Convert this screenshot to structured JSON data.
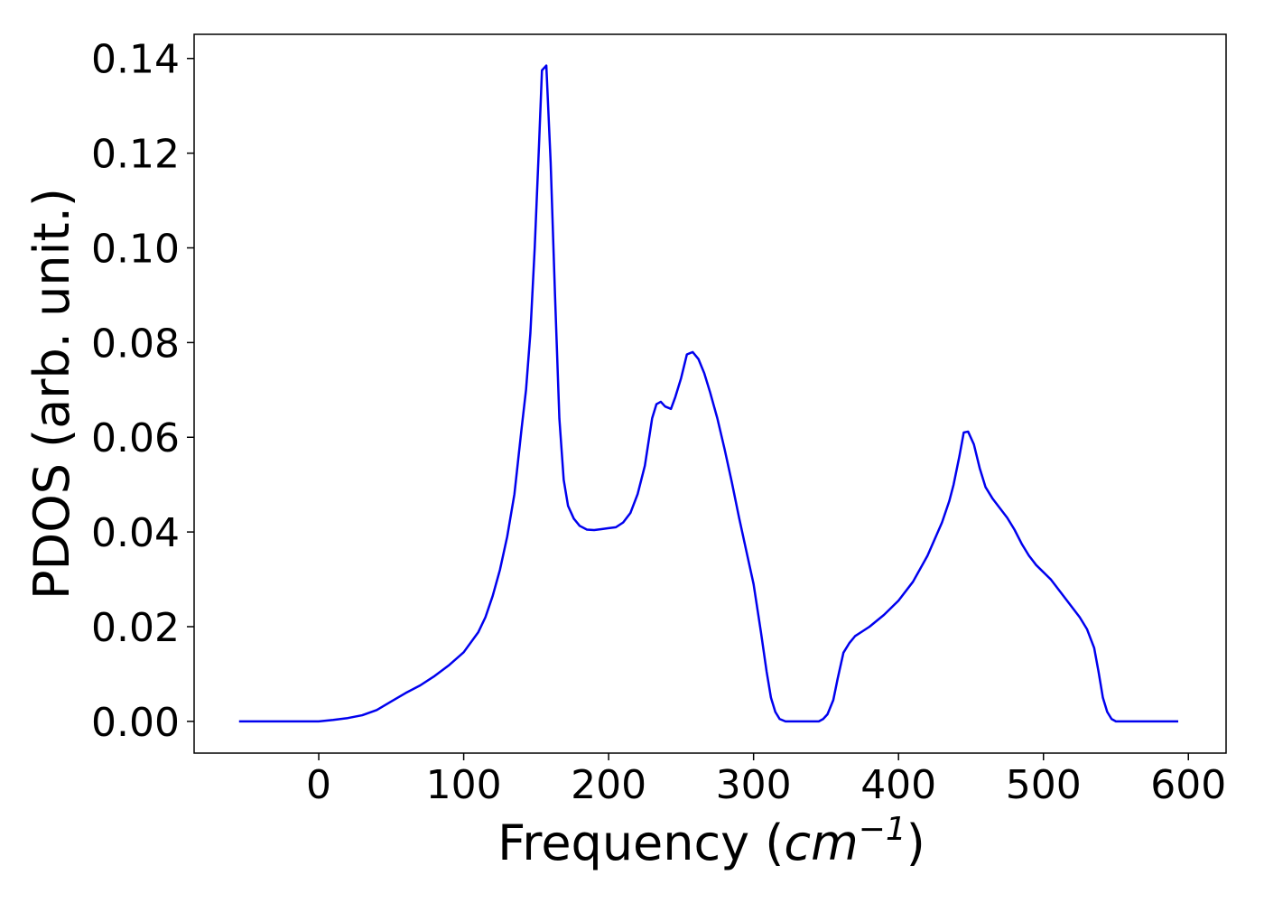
{
  "chart_data": {
    "type": "line",
    "xlabel": [
      "Frequency (",
      "cm",
      "−1",
      ")"
    ],
    "ylabel": "PDOS (arb. unit.)",
    "x": [
      -55,
      0,
      10,
      20,
      30,
      40,
      50,
      60,
      70,
      80,
      90,
      100,
      110,
      115,
      120,
      125,
      130,
      135,
      140,
      143,
      146,
      149,
      152,
      154,
      157,
      160,
      163,
      166,
      169,
      172,
      176,
      180,
      185,
      190,
      195,
      200,
      205,
      210,
      215,
      220,
      225,
      230,
      233,
      236,
      239,
      243,
      246,
      250,
      254,
      258,
      262,
      266,
      270,
      275,
      280,
      285,
      290,
      295,
      300,
      305,
      309,
      312,
      315,
      318,
      322,
      345,
      348,
      351,
      355,
      358,
      362,
      366,
      370,
      375,
      380,
      390,
      400,
      410,
      420,
      430,
      435,
      438,
      442,
      445,
      448,
      452,
      456,
      460,
      465,
      470,
      475,
      480,
      485,
      490,
      495,
      500,
      505,
      510,
      515,
      520,
      525,
      530,
      535,
      538,
      541,
      544,
      547,
      550,
      593
    ],
    "series": [
      {
        "color": "#0000ee",
        "values": [
          0,
          0,
          0.0003,
          0.0007,
          0.0013,
          0.0024,
          0.0042,
          0.006,
          0.0076,
          0.0096,
          0.0119,
          0.0146,
          0.0188,
          0.022,
          0.0265,
          0.032,
          0.039,
          0.048,
          0.062,
          0.07,
          0.082,
          0.1,
          0.122,
          0.1375,
          0.1385,
          0.118,
          0.09,
          0.064,
          0.051,
          0.0455,
          0.0428,
          0.0413,
          0.0405,
          0.0404,
          0.0406,
          0.0408,
          0.041,
          0.042,
          0.044,
          0.048,
          0.054,
          0.064,
          0.067,
          0.0675,
          0.0665,
          0.066,
          0.0685,
          0.0725,
          0.0775,
          0.078,
          0.0765,
          0.0735,
          0.0695,
          0.064,
          0.0575,
          0.0505,
          0.043,
          0.036,
          0.029,
          0.019,
          0.0105,
          0.005,
          0.002,
          0.0005,
          0,
          0,
          0.0005,
          0.0015,
          0.0045,
          0.009,
          0.0145,
          0.0165,
          0.018,
          0.019,
          0.02,
          0.0225,
          0.0255,
          0.0295,
          0.035,
          0.042,
          0.0465,
          0.05,
          0.056,
          0.061,
          0.0612,
          0.0585,
          0.0535,
          0.0495,
          0.047,
          0.045,
          0.043,
          0.0405,
          0.0375,
          0.035,
          0.033,
          0.0315,
          0.03,
          0.028,
          0.026,
          0.024,
          0.022,
          0.0195,
          0.0155,
          0.0105,
          0.005,
          0.002,
          0.0005,
          0,
          0
        ]
      }
    ],
    "xlim": [
      -86,
      626
    ],
    "ylim": [
      -0.0067,
      0.1451
    ],
    "xticks": [
      0,
      100,
      200,
      300,
      400,
      500,
      600
    ],
    "yticks": [
      {
        "value": 0,
        "label": "0.00"
      },
      {
        "value": 0.02,
        "label": "0.02"
      },
      {
        "value": 0.04,
        "label": "0.04"
      },
      {
        "value": 0.06,
        "label": "0.06"
      },
      {
        "value": 0.08,
        "label": "0.08"
      },
      {
        "value": 0.1,
        "label": "0.10"
      },
      {
        "value": 0.12,
        "label": "0.12"
      },
      {
        "value": 0.14,
        "label": "0.14"
      }
    ]
  }
}
